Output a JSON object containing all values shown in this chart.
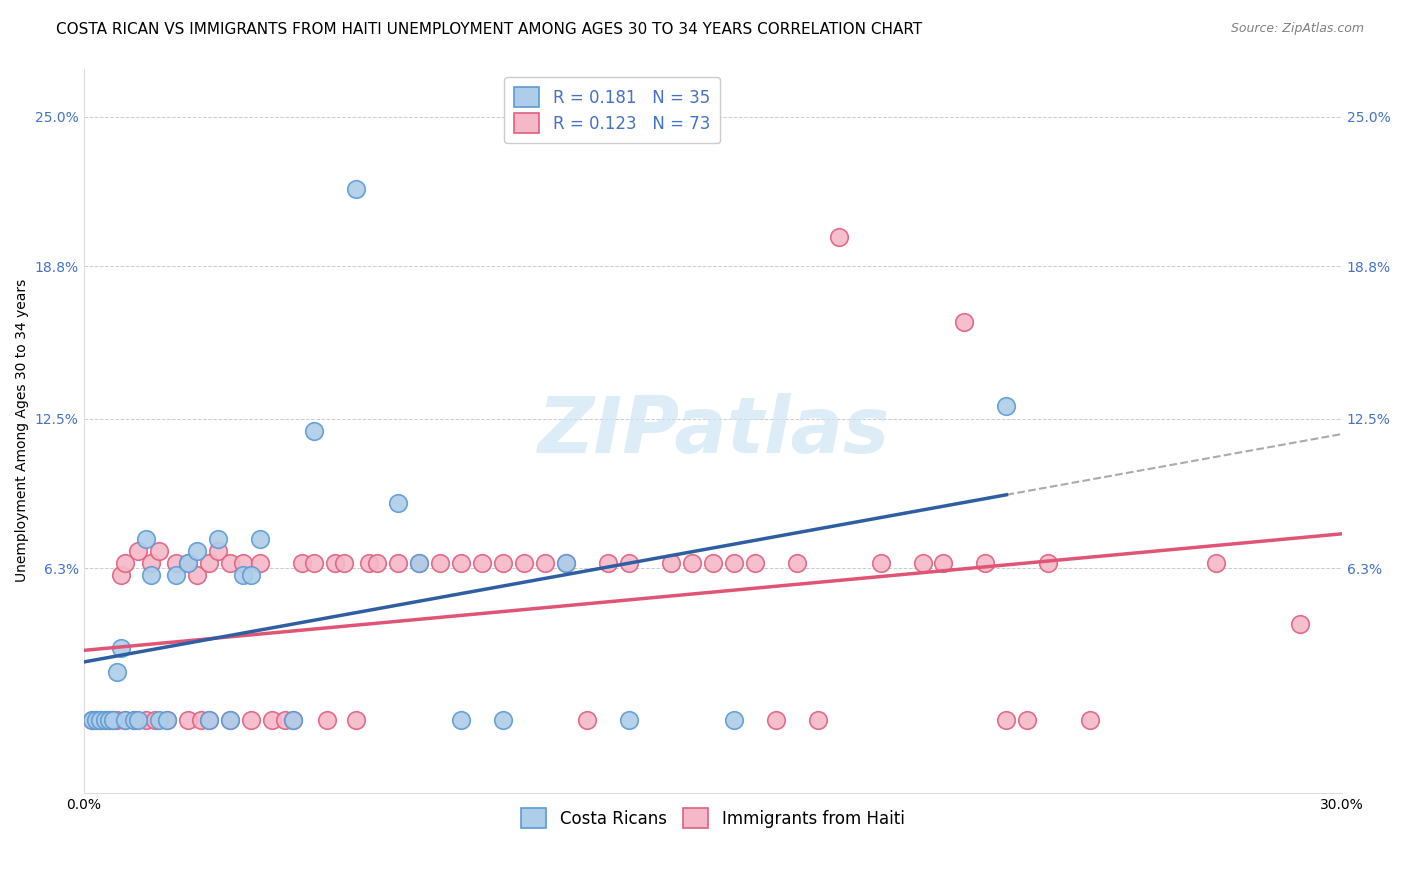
{
  "title": "COSTA RICAN VS IMMIGRANTS FROM HAITI UNEMPLOYMENT AMONG AGES 30 TO 34 YEARS CORRELATION CHART",
  "source": "Source: ZipAtlas.com",
  "ylabel": "Unemployment Among Ages 30 to 34 years",
  "xlim": [
    0.0,
    0.3
  ],
  "ylim": [
    -0.03,
    0.27
  ],
  "yticks": [
    0.063,
    0.125,
    0.188,
    0.25
  ],
  "ytick_labels": [
    "6.3%",
    "12.5%",
    "18.8%",
    "25.0%"
  ],
  "xticks": [
    0.0,
    0.05,
    0.1,
    0.15,
    0.2,
    0.25,
    0.3
  ],
  "xtick_labels": [
    "0.0%",
    "",
    "",
    "",
    "",
    "",
    "30.0%"
  ],
  "legend_labels_bottom": [
    "Costa Ricans",
    "Immigrants from Haiti"
  ],
  "costa_rican_color": "#aecde8",
  "costa_rican_edge": "#5b9bd5",
  "haiti_color": "#f4b8c8",
  "haiti_edge": "#e06080",
  "blue_line_color": "#2e5fa3",
  "pink_line_color": "#e05575",
  "dashed_line_color": "#aaaaaa",
  "background_color": "#ffffff",
  "grid_color": "#cccccc",
  "R_cr": 0.181,
  "N_cr": 35,
  "R_haiti": 0.123,
  "N_haiti": 73,
  "title_fontsize": 11,
  "source_fontsize": 9,
  "axis_label_fontsize": 10,
  "tick_fontsize": 10,
  "legend_fontsize": 12,
  "costa_ricans_x": [
    0.002,
    0.003,
    0.004,
    0.005,
    0.006,
    0.007,
    0.008,
    0.009,
    0.01,
    0.012,
    0.013,
    0.015,
    0.016,
    0.018,
    0.02,
    0.022,
    0.025,
    0.027,
    0.03,
    0.032,
    0.035,
    0.038,
    0.04,
    0.042,
    0.05,
    0.055,
    0.065,
    0.075,
    0.08,
    0.09,
    0.1,
    0.115,
    0.13,
    0.155,
    0.22
  ],
  "costa_ricans_y": [
    0.0,
    0.0,
    0.0,
    0.0,
    0.0,
    0.0,
    0.02,
    0.03,
    0.0,
    0.0,
    0.0,
    0.075,
    0.06,
    0.0,
    0.0,
    0.06,
    0.065,
    0.07,
    0.0,
    0.075,
    0.0,
    0.06,
    0.06,
    0.075,
    0.0,
    0.12,
    0.22,
    0.09,
    0.065,
    0.0,
    0.0,
    0.065,
    0.0,
    0.0,
    0.13
  ],
  "haiti_x": [
    0.002,
    0.003,
    0.004,
    0.005,
    0.006,
    0.007,
    0.008,
    0.009,
    0.01,
    0.01,
    0.012,
    0.013,
    0.015,
    0.016,
    0.017,
    0.018,
    0.02,
    0.022,
    0.025,
    0.025,
    0.027,
    0.028,
    0.03,
    0.03,
    0.032,
    0.035,
    0.035,
    0.038,
    0.04,
    0.042,
    0.045,
    0.048,
    0.05,
    0.052,
    0.055,
    0.058,
    0.06,
    0.062,
    0.065,
    0.068,
    0.07,
    0.075,
    0.08,
    0.085,
    0.09,
    0.095,
    0.1,
    0.105,
    0.11,
    0.115,
    0.12,
    0.125,
    0.13,
    0.14,
    0.145,
    0.15,
    0.155,
    0.16,
    0.165,
    0.17,
    0.175,
    0.18,
    0.19,
    0.2,
    0.205,
    0.21,
    0.215,
    0.22,
    0.225,
    0.23,
    0.24,
    0.27,
    0.29
  ],
  "haiti_y": [
    0.0,
    0.0,
    0.0,
    0.0,
    0.0,
    0.0,
    0.0,
    0.06,
    0.0,
    0.065,
    0.0,
    0.07,
    0.0,
    0.065,
    0.0,
    0.07,
    0.0,
    0.065,
    0.0,
    0.065,
    0.06,
    0.0,
    0.0,
    0.065,
    0.07,
    0.0,
    0.065,
    0.065,
    0.0,
    0.065,
    0.0,
    0.0,
    0.0,
    0.065,
    0.065,
    0.0,
    0.065,
    0.065,
    0.0,
    0.065,
    0.065,
    0.065,
    0.065,
    0.065,
    0.065,
    0.065,
    0.065,
    0.065,
    0.065,
    0.065,
    0.0,
    0.065,
    0.065,
    0.065,
    0.065,
    0.065,
    0.065,
    0.065,
    0.0,
    0.065,
    0.0,
    0.2,
    0.065,
    0.065,
    0.065,
    0.165,
    0.065,
    0.0,
    0.0,
    0.065,
    0.0,
    0.065,
    0.04
  ]
}
